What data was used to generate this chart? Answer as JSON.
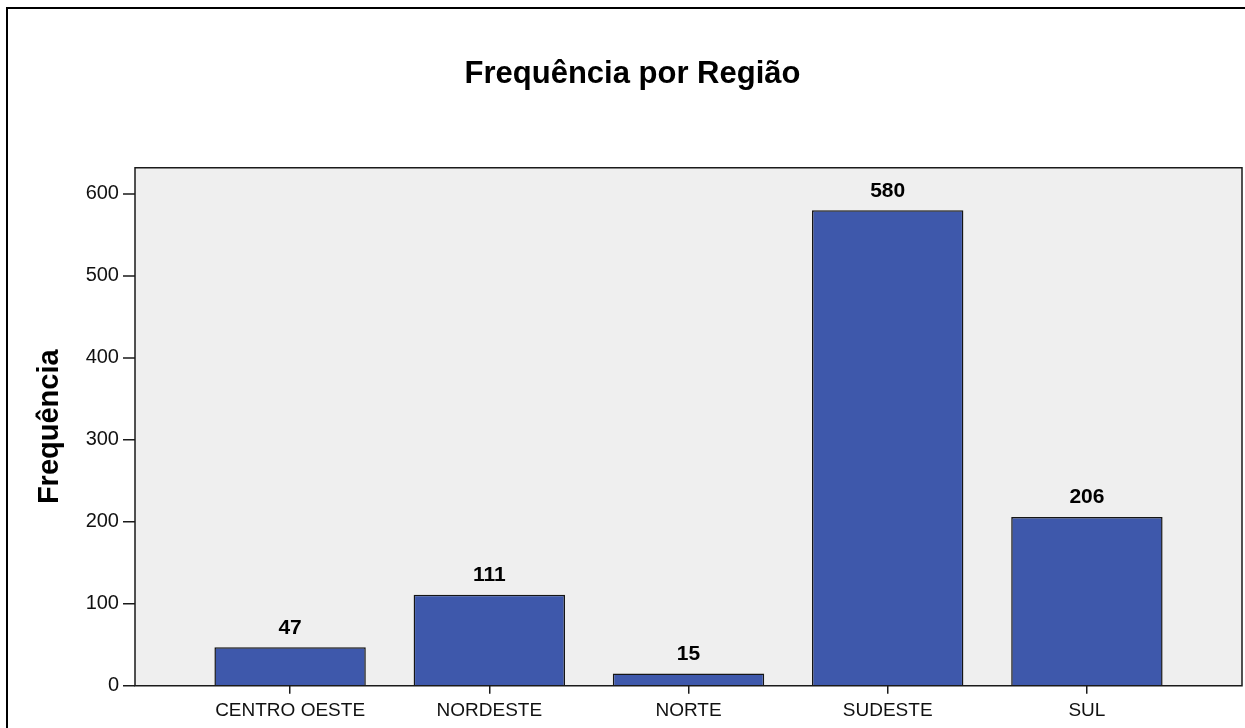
{
  "chart_data": {
    "type": "bar",
    "title": "Frequência por Região",
    "ylabel": "Frequência",
    "categories": [
      "CENTRO OESTE",
      "NORDESTE",
      "NORTE",
      "SUDESTE",
      "SUL"
    ],
    "values": [
      47,
      111,
      15,
      580,
      206
    ],
    "color": "#3e58ab",
    "ylim": [
      0,
      632
    ],
    "yticks": [
      0,
      100,
      200,
      300,
      400,
      500,
      600
    ],
    "data_labels": true,
    "grid": false,
    "legend": false
  }
}
